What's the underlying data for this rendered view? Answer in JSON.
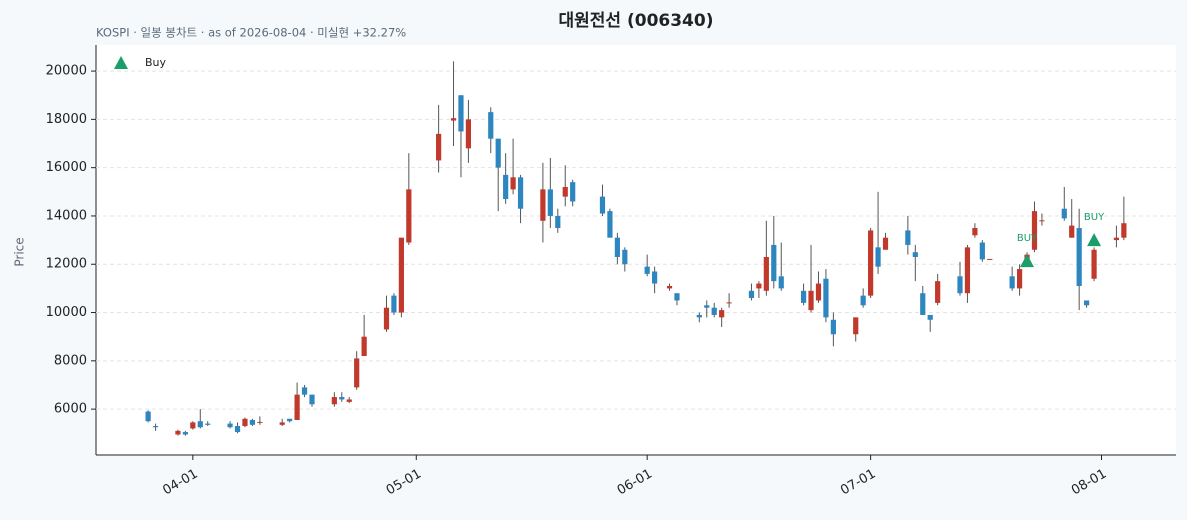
{
  "chart_data": {
    "type": "candlestick",
    "title": "대원전선 (006340)",
    "subtitle": "KOSPI · 일봉 봉차트 · as of 2026-08-04 · 미실현 +32.27%",
    "y_label": "Price",
    "legend": {
      "position": "upper left"
    },
    "up_color": "#c0392b",
    "down_color": "#2e86c1",
    "wick_color": "#555555",
    "grid": true,
    "xlim": [
      "2026-03-19",
      "2026-08-11"
    ],
    "xticks": [
      {
        "value": "2026-04-01",
        "label": "04-01"
      },
      {
        "value": "2026-05-01",
        "label": "05-01"
      },
      {
        "value": "2026-06-01",
        "label": "06-01"
      },
      {
        "value": "2026-07-01",
        "label": "07-01"
      },
      {
        "value": "2026-08-01",
        "label": "08-01"
      }
    ],
    "ylim": [
      4100,
      21080
    ],
    "yticks": [
      6000,
      8000,
      10000,
      12000,
      14000,
      16000,
      18000,
      20000
    ],
    "x": [
      "2026-03-26",
      "2026-03-27",
      "2026-03-30",
      "2026-03-31",
      "2026-04-01",
      "2026-04-02",
      "2026-04-03",
      "2026-04-06",
      "2026-04-07",
      "2026-04-08",
      "2026-04-09",
      "2026-04-10",
      "2026-04-13",
      "2026-04-14",
      "2026-04-15",
      "2026-04-16",
      "2026-04-17",
      "2026-04-20",
      "2026-04-21",
      "2026-04-22",
      "2026-04-23",
      "2026-04-24",
      "2026-04-27",
      "2026-04-28",
      "2026-04-29",
      "2026-04-30",
      "2026-05-04",
      "2026-05-06",
      "2026-05-07",
      "2026-05-08",
      "2026-05-11",
      "2026-05-12",
      "2026-05-13",
      "2026-05-14",
      "2026-05-15",
      "2026-05-18",
      "2026-05-19",
      "2026-05-20",
      "2026-05-21",
      "2026-05-22",
      "2026-05-26",
      "2026-05-27",
      "2026-05-28",
      "2026-05-29",
      "2026-06-01",
      "2026-06-02",
      "2026-06-04",
      "2026-06-05",
      "2026-06-08",
      "2026-06-09",
      "2026-06-10",
      "2026-06-11",
      "2026-06-12",
      "2026-06-15",
      "2026-06-16",
      "2026-06-17",
      "2026-06-18",
      "2026-06-19",
      "2026-06-22",
      "2026-06-23",
      "2026-06-24",
      "2026-06-25",
      "2026-06-26",
      "2026-06-29",
      "2026-06-30",
      "2026-07-01",
      "2026-07-02",
      "2026-07-03",
      "2026-07-06",
      "2026-07-07",
      "2026-07-08",
      "2026-07-09",
      "2026-07-10",
      "2026-07-13",
      "2026-07-14",
      "2026-07-15",
      "2026-07-16",
      "2026-07-17",
      "2026-07-20",
      "2026-07-21",
      "2026-07-22",
      "2026-07-23",
      "2026-07-24",
      "2026-07-27",
      "2026-07-28",
      "2026-07-29",
      "2026-07-30",
      "2026-07-31",
      "2026-08-03",
      "2026-08-04"
    ],
    "open": [
      5900,
      5300,
      4950,
      5050,
      5200,
      5500,
      5400,
      5400,
      5300,
      5300,
      5550,
      5450,
      5350,
      5600,
      5550,
      6900,
      6600,
      6200,
      6500,
      6300,
      6900,
      8200,
      9300,
      10700,
      10000,
      12900,
      16300,
      17950,
      19000,
      16800,
      18300,
      17200,
      15700,
      15100,
      15600,
      13800,
      15100,
      14000,
      14800,
      15400,
      14800,
      14200,
      13100,
      12600,
      11900,
      11700,
      11000,
      10800,
      9900,
      10300,
      10200,
      9800,
      10400,
      10900,
      11000,
      10900,
      12800,
      11500,
      10900,
      10100,
      10500,
      11400,
      9700,
      9100,
      10700,
      10700,
      12700,
      12600,
      13400,
      12500,
      10800,
      9900,
      10400,
      11500,
      10800,
      13200,
      12900,
      12200,
      11500,
      11000,
      12200,
      12600,
      13800,
      14300,
      13100,
      13500,
      10500,
      11400,
      13000,
      13100
    ],
    "close": [
      5500,
      5250,
      5100,
      4950,
      5450,
      5250,
      5350,
      5250,
      5050,
      5600,
      5350,
      5470,
      5450,
      5500,
      6600,
      6600,
      6200,
      6500,
      6400,
      6400,
      8100,
      9000,
      10200,
      10000,
      13100,
      15100,
      17400,
      18050,
      17500,
      18000,
      17200,
      16000,
      14700,
      15600,
      14300,
      15100,
      14000,
      13500,
      15200,
      14600,
      14100,
      13100,
      12300,
      12000,
      11600,
      11200,
      11100,
      10500,
      9800,
      10200,
      9900,
      10100,
      10420,
      10600,
      11200,
      12300,
      11300,
      11000,
      10400,
      10900,
      11200,
      9800,
      9100,
      9800,
      10300,
      13400,
      11900,
      13100,
      12800,
      12300,
      9900,
      9700,
      11300,
      10800,
      12700,
      13500,
      12200,
      12220,
      11000,
      11800,
      12400,
      14200,
      13820,
      13900,
      13600,
      11100,
      10300,
      12600,
      13100,
      13700
    ],
    "high": [
      5950,
      5400,
      5150,
      5100,
      5500,
      6000,
      5500,
      5500,
      5450,
      5650,
      5600,
      5700,
      5600,
      5600,
      7100,
      7000,
      6600,
      6700,
      6700,
      6500,
      8400,
      9900,
      10700,
      10800,
      13100,
      16600,
      18600,
      20400,
      19000,
      18800,
      18500,
      17200,
      16600,
      17200,
      15700,
      16200,
      16400,
      14300,
      16100,
      15500,
      15300,
      14300,
      13300,
      12700,
      12400,
      11900,
      11200,
      10800,
      10000,
      10500,
      10400,
      10200,
      10800,
      11200,
      11300,
      13800,
      14000,
      12900,
      11200,
      12800,
      11700,
      11800,
      10000,
      9800,
      11000,
      13500,
      15000,
      13300,
      14000,
      12800,
      11100,
      9900,
      11600,
      12100,
      12800,
      13700,
      13000,
      12200,
      11900,
      12000,
      12500,
      14600,
      14100,
      15200,
      14700,
      14300,
      10500,
      12700,
      13600,
      14800
    ],
    "low": [
      5450,
      5100,
      4900,
      4900,
      5150,
      5200,
      5300,
      5200,
      5000,
      5250,
      5300,
      5350,
      5300,
      5450,
      5550,
      6500,
      6100,
      6100,
      6300,
      6250,
      6800,
      8200,
      9200,
      9900,
      9800,
      12800,
      15800,
      16900,
      15600,
      16200,
      16600,
      14200,
      14500,
      14900,
      13700,
      12900,
      13500,
      13300,
      14400,
      14400,
      14000,
      13100,
      12000,
      11700,
      11500,
      10800,
      10900,
      10300,
      9600,
      9800,
      9800,
      9400,
      10200,
      10500,
      10600,
      10700,
      11000,
      10900,
      10300,
      10000,
      10400,
      9600,
      8600,
      8800,
      10200,
      10600,
      11600,
      12600,
      12400,
      11300,
      9900,
      9200,
      10300,
      10700,
      10400,
      13100,
      12100,
      12200,
      10900,
      10700,
      12100,
      12500,
      13600,
      13800,
      13100,
      10100,
      10200,
      11300,
      12700,
      13000
    ],
    "buy": {
      "name": "Buy",
      "label": "BUY",
      "color": "#1a9e6a",
      "x": [
        "2026-07-22",
        "2026-07-31"
      ],
      "values": [
        12130,
        13000
      ]
    }
  }
}
